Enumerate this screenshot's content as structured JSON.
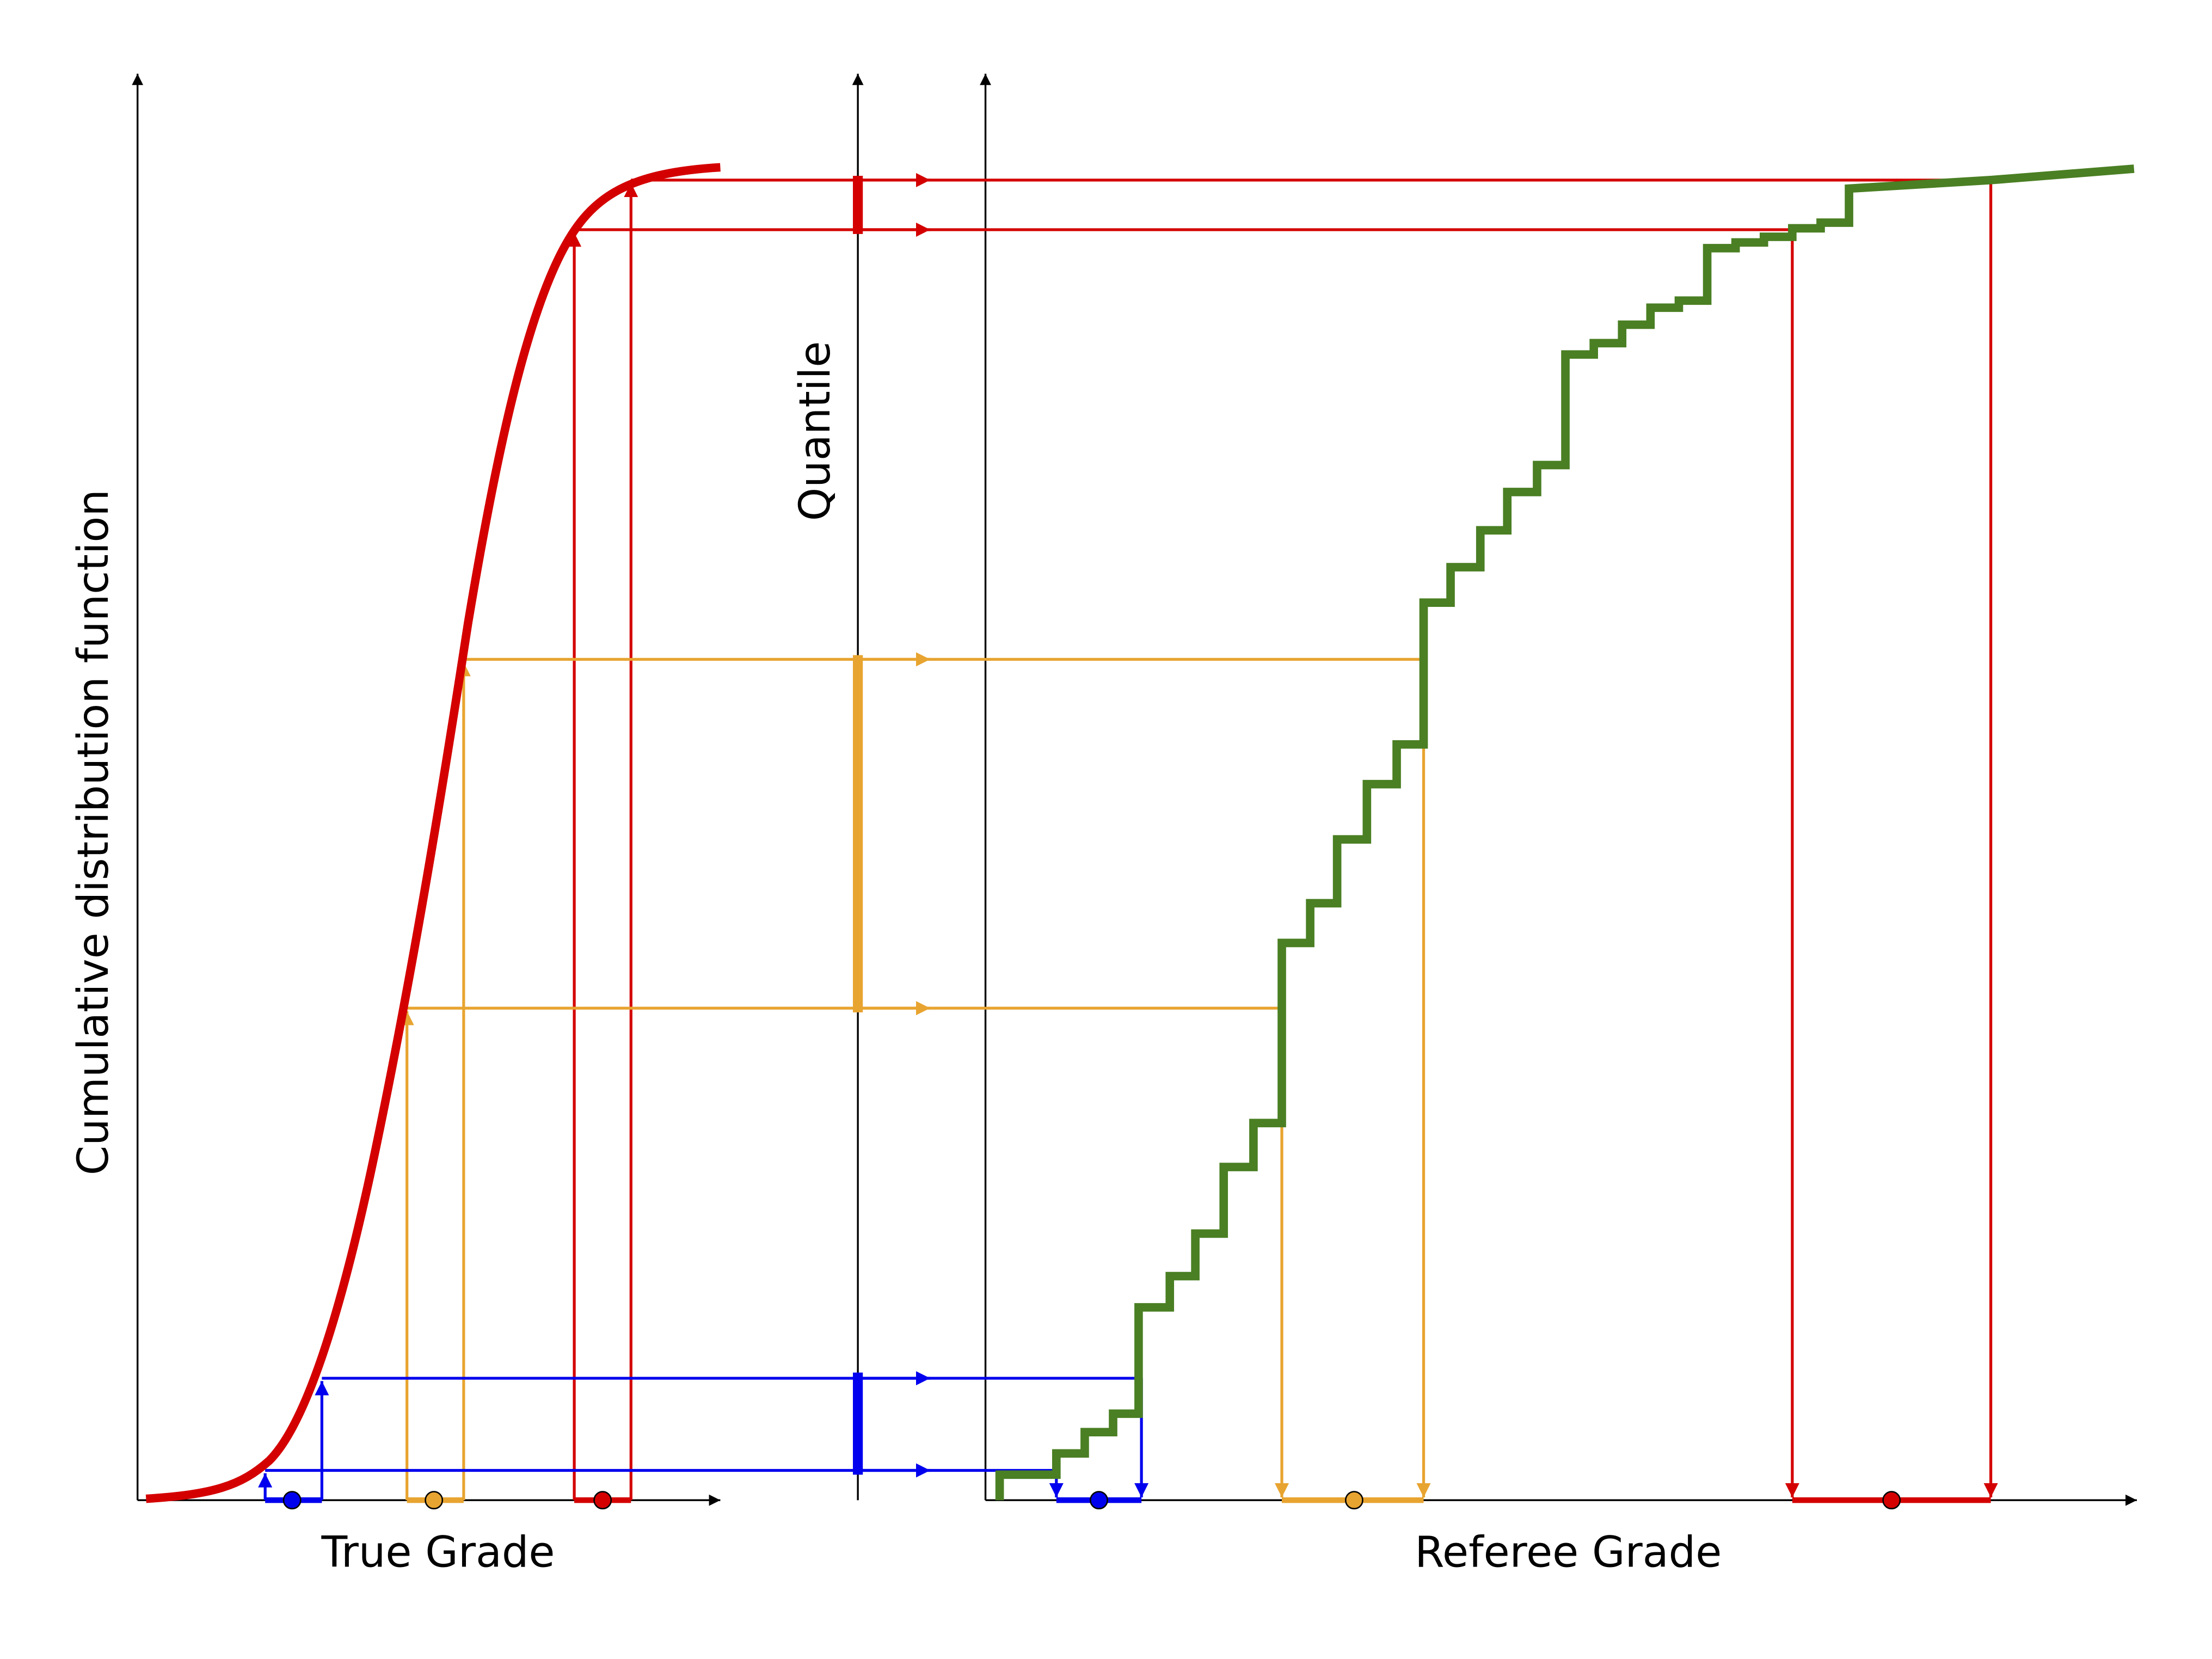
{
  "axis_labels": {
    "y": "Cumulative distribution function",
    "quantile": "Quantile",
    "x_left": "True Grade",
    "x_right": "Referee Grade"
  }
}
